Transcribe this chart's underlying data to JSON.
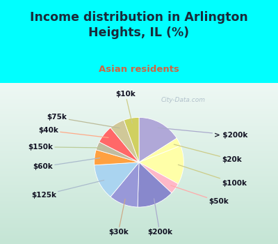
{
  "title": "Income distribution in Arlington\nHeights, IL (%)",
  "subtitle": "Asian residents",
  "labels": [
    "> $200k",
    "$20k",
    "$100k",
    "$50k",
    "$200k",
    "$30k",
    "$125k",
    "$60k",
    "$150k",
    "$40k",
    "$75k",
    "$10k"
  ],
  "values": [
    16.0,
    3.0,
    14.0,
    4.0,
    13.5,
    10.5,
    13.0,
    5.5,
    3.0,
    6.5,
    5.5,
    5.5
  ],
  "colors": [
    "#b0a8d8",
    "#ffffa8",
    "#ffffa8",
    "#ffb8c8",
    "#8888cc",
    "#9898d8",
    "#aad4f0",
    "#ffa040",
    "#c0bca0",
    "#ff6868",
    "#d0c898",
    "#d0d060"
  ],
  "bg_cyan": "#00ffff",
  "bg_chart_gradient_start": "#f0f8f0",
  "bg_chart_gradient_end": "#c8e8d8",
  "title_color": "#1a2a3a",
  "subtitle_color": "#cc6644",
  "watermark": "City-Data.com",
  "label_fontsize": 7.5,
  "title_fontsize": 12.5
}
